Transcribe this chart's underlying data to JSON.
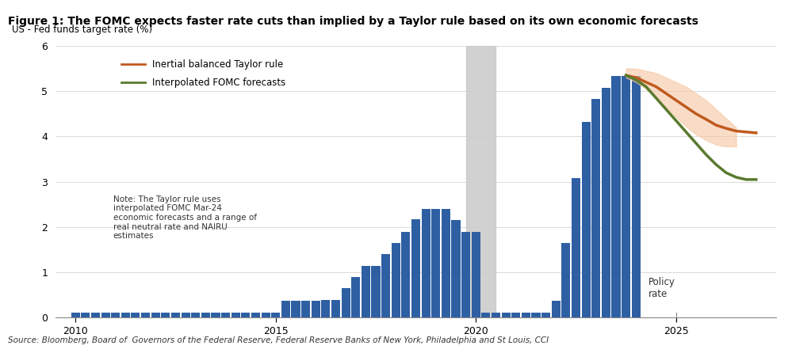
{
  "title": "Figure 1: The FOMC expects faster rate cuts than implied by a Taylor rule based on its own economic forecasts",
  "ylabel": "US - Fed funds target rate (%)",
  "source": "Source: Bloomberg, Board of  Governors of the Federal Reserve, Federal Reserve Banks of New York, Philadelphia and St Louis, CCI",
  "note": "Note: The Taylor rule uses\ninterpolated FOMC Mar-24\neconomic forecasts and a range of\nreal neutral rate and NAIRU\nestimates",
  "policy_rate_label": "Policy\nrate",
  "bar_color": "#2E5FA3",
  "bar_years": [
    2010,
    2010.25,
    2010.5,
    2010.75,
    2011,
    2011.25,
    2011.5,
    2011.75,
    2012,
    2012.25,
    2012.5,
    2012.75,
    2013,
    2013.25,
    2013.5,
    2013.75,
    2014,
    2014.25,
    2014.5,
    2014.75,
    2015,
    2015.25,
    2015.5,
    2015.75,
    2016,
    2016.25,
    2016.5,
    2016.75,
    2017,
    2017.25,
    2017.5,
    2017.75,
    2018,
    2018.25,
    2018.5,
    2018.75,
    2019,
    2019.25,
    2019.5,
    2019.75,
    2020,
    2020.25,
    2020.5,
    2020.75,
    2021,
    2021.25,
    2021.5,
    2021.75,
    2022,
    2022.25,
    2022.5,
    2022.75,
    2023,
    2023.25,
    2023.5,
    2023.75,
    2024
  ],
  "bar_values": [
    0.12,
    0.12,
    0.12,
    0.12,
    0.12,
    0.12,
    0.12,
    0.12,
    0.12,
    0.12,
    0.12,
    0.12,
    0.12,
    0.12,
    0.12,
    0.12,
    0.12,
    0.12,
    0.12,
    0.12,
    0.12,
    0.37,
    0.37,
    0.37,
    0.37,
    0.4,
    0.4,
    0.65,
    0.9,
    1.15,
    1.15,
    1.4,
    1.65,
    1.9,
    2.18,
    2.4,
    2.4,
    2.4,
    2.15,
    1.9,
    1.9,
    0.12,
    0.12,
    0.12,
    0.12,
    0.12,
    0.12,
    0.12,
    0.37,
    1.65,
    3.08,
    4.33,
    4.83,
    5.08,
    5.33,
    5.33,
    5.33
  ],
  "recession_start": 2019.75,
  "recession_end": 2020.5,
  "recession_color": "#CCCCCC",
  "taylor_x": [
    2023.75,
    2024.0,
    2024.25,
    2024.5,
    2024.75,
    2025.0,
    2025.25,
    2025.5,
    2025.75,
    2026.0,
    2026.25,
    2026.5,
    2026.75,
    2027.0
  ],
  "taylor_y": [
    5.35,
    5.3,
    5.2,
    5.1,
    4.95,
    4.8,
    4.65,
    4.5,
    4.38,
    4.25,
    4.18,
    4.12,
    4.1,
    4.08
  ],
  "taylor_color": "#C05A1F",
  "fomc_x": [
    2023.75,
    2024.0,
    2024.25,
    2024.5,
    2024.75,
    2025.0,
    2025.25,
    2025.5,
    2025.75,
    2026.0,
    2026.25,
    2026.5,
    2026.75,
    2027.0
  ],
  "fomc_y": [
    5.35,
    5.25,
    5.1,
    4.85,
    4.6,
    4.35,
    4.1,
    3.85,
    3.6,
    3.38,
    3.2,
    3.1,
    3.05,
    3.05
  ],
  "fomc_color": "#5A7A2E",
  "shade_upper_x": [
    2023.75,
    2024.0,
    2024.25,
    2024.5,
    2024.75,
    2025.0,
    2025.25,
    2025.5,
    2025.75,
    2026.0,
    2026.25,
    2026.5
  ],
  "shade_upper_y": [
    5.5,
    5.5,
    5.45,
    5.4,
    5.3,
    5.2,
    5.1,
    4.95,
    4.8,
    4.6,
    4.4,
    4.2
  ],
  "shade_lower_x": [
    2023.75,
    2024.0,
    2024.25,
    2024.5,
    2024.75,
    2025.0,
    2025.25,
    2025.5,
    2025.75,
    2026.0,
    2026.25,
    2026.5
  ],
  "shade_lower_y": [
    5.3,
    5.2,
    5.05,
    4.85,
    4.65,
    4.43,
    4.22,
    4.05,
    3.92,
    3.82,
    3.78,
    3.78
  ],
  "shade_color": "#F5C6A0",
  "shade_alpha": 0.6,
  "ylim": [
    0,
    6
  ],
  "xlim": [
    2009.5,
    2027.5
  ],
  "xticks": [
    2010,
    2015,
    2020,
    2025
  ],
  "yticks": [
    0,
    1,
    2,
    3,
    4,
    5,
    6
  ],
  "title_bg_color": "#D6E4F0",
  "bar_width": 0.22
}
